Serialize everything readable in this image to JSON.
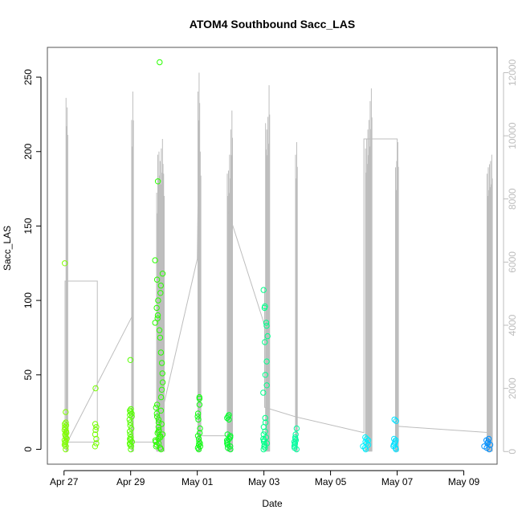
{
  "chart_data": {
    "type": "scatter",
    "title": "ATOM4 Southbound Sacc_LAS",
    "xlabel": "Date",
    "ylabel": "Sacc_LAS",
    "x_tick_labels": [
      "Apr 27",
      "Apr 29",
      "May 01",
      "May 03",
      "May 05",
      "May 07",
      "May 09"
    ],
    "x_tick_days": [
      0,
      2,
      4,
      6,
      8,
      10,
      12
    ],
    "xlim_days": [
      -0.5,
      13.0
    ],
    "ylim": [
      -10,
      270
    ],
    "y_ticks": [
      0,
      50,
      100,
      150,
      200,
      250
    ],
    "y2_ticks": [
      0,
      2000,
      4000,
      6000,
      8000,
      10000,
      12000
    ],
    "y2lim": [
      -400,
      12800
    ],
    "series_colors": {
      "points_start": "#7fff00",
      "points_mid": "#00ff40",
      "points_cyan": "#00ffff",
      "points_end": "#0080ff",
      "secondary_lines": "#bdbdbd",
      "axis": "#555555"
    },
    "point_clusters": [
      {
        "day": 0.05,
        "spread": 0.04,
        "values": [
          0,
          2,
          3,
          4,
          5,
          5,
          6,
          7,
          8,
          9,
          10,
          11,
          12,
          13,
          14,
          15,
          16,
          17,
          18,
          25,
          125
        ],
        "color": "#80ff00"
      },
      {
        "day": 0.95,
        "spread": 0.02,
        "values": [
          2,
          4,
          7,
          10,
          13,
          15,
          17,
          41
        ],
        "color": "#76ff00"
      },
      {
        "day": 2.0,
        "spread": 0.04,
        "values": [
          0,
          2,
          3,
          4,
          5,
          6,
          7,
          8,
          10,
          12,
          14,
          16,
          18,
          20,
          22,
          23,
          24,
          25,
          26,
          27,
          60
        ],
        "color": "#55ff00"
      },
      {
        "day": 2.85,
        "spread": 0.12,
        "values": [
          0,
          1,
          2,
          3,
          4,
          5,
          6,
          7,
          8,
          9,
          10,
          11,
          12,
          13,
          15,
          17,
          18,
          20,
          22,
          24,
          26,
          28,
          30,
          35,
          40,
          45,
          51,
          58,
          65,
          75,
          80,
          85,
          88,
          90,
          95,
          100,
          105,
          110,
          114,
          118,
          127,
          180,
          260
        ],
        "color": "#2aff00"
      },
      {
        "day": 4.05,
        "spread": 0.04,
        "values": [
          0,
          1,
          2,
          3,
          4,
          5,
          7,
          9,
          11,
          14,
          20,
          22,
          24,
          30,
          34,
          35
        ],
        "color": "#10ff10"
      },
      {
        "day": 4.95,
        "spread": 0.06,
        "values": [
          0,
          1,
          2,
          3,
          4,
          5,
          6,
          7,
          8,
          9,
          10,
          20,
          21,
          22,
          23
        ],
        "color": "#00ff2a"
      },
      {
        "day": 6.05,
        "spread": 0.07,
        "values": [
          0,
          1,
          2,
          3,
          4,
          5,
          6,
          7,
          8,
          10,
          12,
          15,
          18,
          21,
          38,
          43,
          50,
          59,
          72,
          76,
          83,
          85,
          95,
          96,
          107
        ],
        "color": "#00ff8a"
      },
      {
        "day": 6.95,
        "spread": 0.04,
        "values": [
          0,
          1,
          2,
          3,
          4,
          5,
          6,
          7,
          8,
          10,
          14
        ],
        "color": "#00ffa0"
      },
      {
        "day": 9.05,
        "spread": 0.1,
        "values": [
          0,
          1,
          2,
          3,
          4,
          5,
          6,
          7,
          8
        ],
        "color": "#00f0ff"
      },
      {
        "day": 9.9,
        "spread": 0.07,
        "values": [
          0,
          1,
          2,
          3,
          4,
          5,
          6,
          7,
          19,
          20
        ],
        "color": "#00e0ff"
      },
      {
        "day": 12.7,
        "spread": 0.1,
        "values": [
          0,
          1,
          2,
          3,
          4,
          5,
          6,
          7
        ],
        "color": "#0090ff"
      }
    ],
    "secondary_spikes": [
      {
        "day": 0.06,
        "peaks": [
          11200,
          10900
        ]
      },
      {
        "day": 2.03,
        "peaks": [
          10500,
          11400
        ]
      },
      {
        "day": 2.78,
        "peaks": [
          8200,
          9400,
          9500,
          9200,
          9600,
          9900,
          8800
        ]
      },
      {
        "day": 4.02,
        "peaks": [
          11400,
          12000,
          9500
        ]
      },
      {
        "day": 4.9,
        "peaks": [
          8800,
          8900,
          9400,
          10200,
          10800
        ]
      },
      {
        "day": 6.05,
        "peaks": [
          10400,
          10200,
          10600,
          11600
        ]
      },
      {
        "day": 6.95,
        "peaks": [
          9400,
          9800
        ]
      },
      {
        "day": 9.05,
        "peaks": [
          9600,
          9900,
          10200,
          10500,
          11100,
          11500
        ]
      },
      {
        "day": 9.95,
        "peaks": [
          9000,
          9200,
          9800
        ]
      },
      {
        "day": 12.7,
        "peaks": [
          8800,
          9000,
          9100,
          9200,
          9400
        ]
      }
    ],
    "secondary_trend": [
      [
        0.03,
        200
      ],
      [
        0.03,
        5400
      ],
      [
        1.0,
        5400
      ],
      [
        1.0,
        300
      ],
      [
        0.1,
        300
      ],
      [
        2.05,
        4300
      ],
      [
        2.05,
        300
      ],
      [
        2.8,
        300
      ],
      [
        2.8,
        2000
      ],
      [
        2.8,
        600
      ],
      [
        4.0,
        6100
      ],
      [
        4.05,
        10400
      ],
      [
        4.05,
        500
      ],
      [
        4.9,
        500
      ],
      [
        4.9,
        7700
      ],
      [
        6.02,
        4000
      ],
      [
        6.02,
        5200
      ],
      [
        6.02,
        1400
      ],
      [
        6.95,
        1100
      ],
      [
        6.95,
        4600
      ],
      [
        6.95,
        1100
      ],
      [
        9.0,
        600
      ],
      [
        9.0,
        9900
      ],
      [
        10.0,
        9900
      ],
      [
        10.0,
        800
      ],
      [
        12.8,
        600
      ]
    ]
  }
}
